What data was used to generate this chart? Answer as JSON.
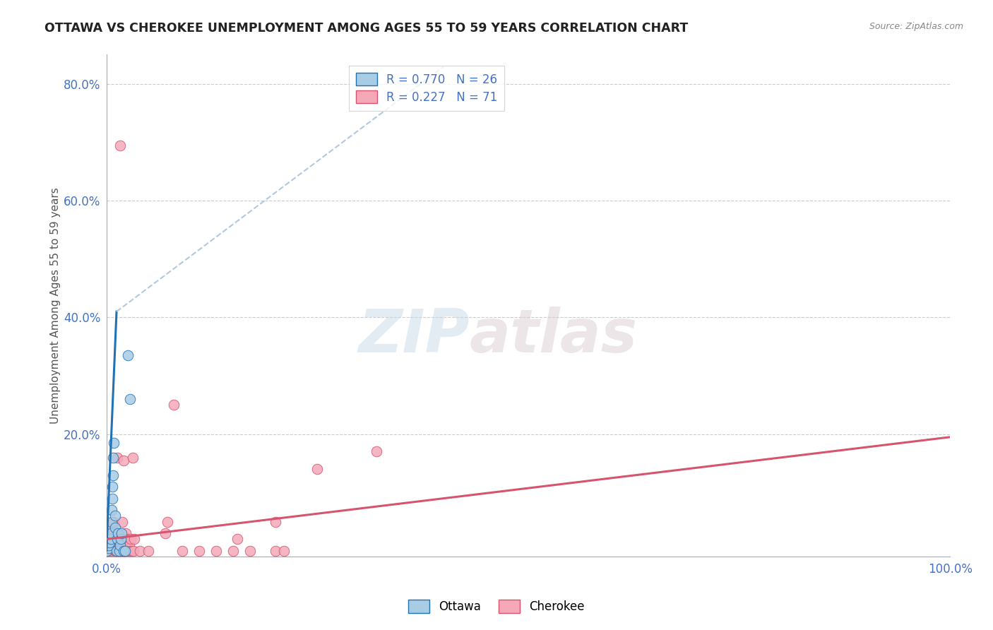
{
  "title": "OTTAWA VS CHEROKEE UNEMPLOYMENT AMONG AGES 55 TO 59 YEARS CORRELATION CHART",
  "source": "Source: ZipAtlas.com",
  "ylabel": "Unemployment Among Ages 55 to 59 years",
  "xlim": [
    0.0,
    1.0
  ],
  "ylim": [
    -0.01,
    0.85
  ],
  "xticks": [
    0.0,
    1.0
  ],
  "xticklabels": [
    "0.0%",
    "100.0%"
  ],
  "yticks": [
    0.0,
    0.2,
    0.4,
    0.6,
    0.8
  ],
  "yticklabels": [
    "",
    "20.0%",
    "40.0%",
    "60.0%",
    "80.0%"
  ],
  "legend_ottawa": "R = 0.770   N = 26",
  "legend_cherokee": "R = 0.227   N = 71",
  "ottawa_color": "#a8cce4",
  "cherokee_color": "#f4a8b8",
  "ottawa_line_color": "#2171b5",
  "cherokee_line_color": "#d6546e",
  "dashed_line_color": "#b0c8e0",
  "watermark_zip": "ZIP",
  "watermark_atlas": "atlas",
  "background_color": "#ffffff",
  "ottawa_scatter": [
    [
      0.0,
      0.0
    ],
    [
      0.003,
      0.005
    ],
    [
      0.003,
      0.01
    ],
    [
      0.004,
      0.015
    ],
    [
      0.005,
      0.02
    ],
    [
      0.005,
      0.03
    ],
    [
      0.006,
      0.05
    ],
    [
      0.006,
      0.07
    ],
    [
      0.007,
      0.09
    ],
    [
      0.007,
      0.11
    ],
    [
      0.008,
      0.13
    ],
    [
      0.008,
      0.16
    ],
    [
      0.009,
      0.185
    ],
    [
      0.01,
      0.04
    ],
    [
      0.01,
      0.06
    ],
    [
      0.012,
      0.0
    ],
    [
      0.013,
      0.02
    ],
    [
      0.014,
      0.03
    ],
    [
      0.015,
      0.0
    ],
    [
      0.016,
      0.01
    ],
    [
      0.017,
      0.02
    ],
    [
      0.018,
      0.03
    ],
    [
      0.02,
      0.0
    ],
    [
      0.022,
      0.0
    ],
    [
      0.025,
      0.335
    ],
    [
      0.028,
      0.26
    ]
  ],
  "cherokee_scatter": [
    [
      0.0,
      0.0
    ],
    [
      0.002,
      0.005
    ],
    [
      0.003,
      0.01
    ],
    [
      0.003,
      0.02
    ],
    [
      0.003,
      0.0
    ],
    [
      0.004,
      0.01
    ],
    [
      0.005,
      0.02
    ],
    [
      0.005,
      0.03
    ],
    [
      0.005,
      0.0
    ],
    [
      0.006,
      0.01
    ],
    [
      0.006,
      0.015
    ],
    [
      0.007,
      0.04
    ],
    [
      0.007,
      0.0
    ],
    [
      0.008,
      0.01
    ],
    [
      0.008,
      0.02
    ],
    [
      0.009,
      0.03
    ],
    [
      0.009,
      0.05
    ],
    [
      0.01,
      0.0
    ],
    [
      0.01,
      0.015
    ],
    [
      0.01,
      0.02
    ],
    [
      0.011,
      0.0
    ],
    [
      0.011,
      0.01
    ],
    [
      0.012,
      0.02
    ],
    [
      0.012,
      0.03
    ],
    [
      0.013,
      0.16
    ],
    [
      0.014,
      0.0
    ],
    [
      0.014,
      0.01
    ],
    [
      0.015,
      0.015
    ],
    [
      0.015,
      0.0
    ],
    [
      0.016,
      0.015
    ],
    [
      0.016,
      0.02
    ],
    [
      0.017,
      0.025
    ],
    [
      0.017,
      0.0
    ],
    [
      0.018,
      0.02
    ],
    [
      0.018,
      0.0
    ],
    [
      0.019,
      0.01
    ],
    [
      0.019,
      0.05
    ],
    [
      0.02,
      0.0
    ],
    [
      0.02,
      0.02
    ],
    [
      0.02,
      0.155
    ],
    [
      0.021,
      0.0
    ],
    [
      0.022,
      0.0
    ],
    [
      0.022,
      0.02
    ],
    [
      0.023,
      0.03
    ],
    [
      0.024,
      0.0
    ],
    [
      0.025,
      0.0
    ],
    [
      0.025,
      0.02
    ],
    [
      0.027,
      0.0
    ],
    [
      0.027,
      0.01
    ],
    [
      0.028,
      0.0
    ],
    [
      0.029,
      0.02
    ],
    [
      0.03,
      0.0
    ],
    [
      0.031,
      0.16
    ],
    [
      0.032,
      0.0
    ],
    [
      0.033,
      0.02
    ],
    [
      0.04,
      0.0
    ],
    [
      0.05,
      0.0
    ],
    [
      0.07,
      0.03
    ],
    [
      0.072,
      0.05
    ],
    [
      0.08,
      0.25
    ],
    [
      0.09,
      0.0
    ],
    [
      0.11,
      0.0
    ],
    [
      0.13,
      0.0
    ],
    [
      0.15,
      0.0
    ],
    [
      0.155,
      0.02
    ],
    [
      0.17,
      0.0
    ],
    [
      0.2,
      0.0
    ],
    [
      0.2,
      0.05
    ],
    [
      0.21,
      0.0
    ],
    [
      0.25,
      0.14
    ],
    [
      0.32,
      0.17
    ],
    [
      0.016,
      0.695
    ]
  ],
  "ottawa_trendline_solid": [
    [
      0.0,
      0.0
    ],
    [
      0.012,
      0.41
    ]
  ],
  "ottawa_trendline_dashed": [
    [
      0.012,
      0.41
    ],
    [
      0.4,
      0.83
    ]
  ],
  "cherokee_trendline": [
    [
      0.0,
      0.02
    ],
    [
      1.0,
      0.195
    ]
  ]
}
